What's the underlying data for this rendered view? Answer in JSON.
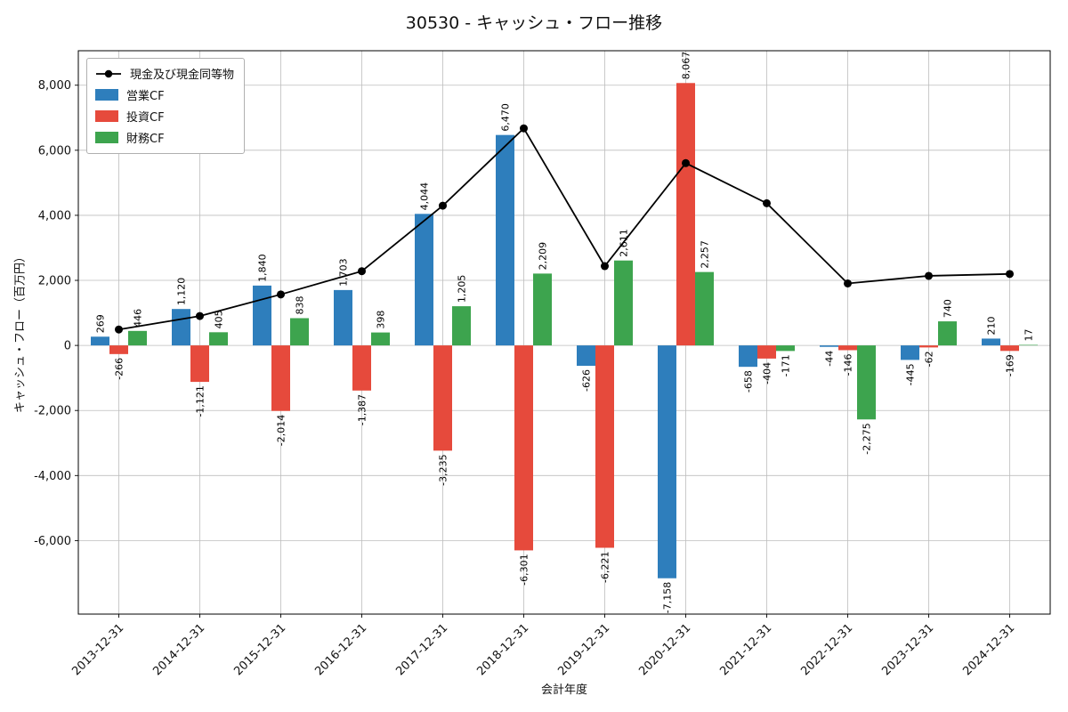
{
  "chart_data": {
    "type": "bar+line",
    "title": "30530 - キャッシュ・フロー推移",
    "xlabel": "会計年度",
    "ylabel": "キャッシュ・フロー（百万円）",
    "categories": [
      "2013-12-31",
      "2014-12-31",
      "2015-12-31",
      "2016-12-31",
      "2017-12-31",
      "2018-12-31",
      "2019-12-31",
      "2020-12-31",
      "2021-12-31",
      "2022-12-31",
      "2023-12-31",
      "2024-12-31"
    ],
    "series": [
      {
        "name": "営業CF",
        "type": "bar",
        "color": "#2e7ebc",
        "values": [
          269,
          1120,
          1840,
          1703,
          4044,
          6470,
          -626,
          -7158,
          -658,
          -44,
          -445,
          210
        ]
      },
      {
        "name": "投資CF",
        "type": "bar",
        "color": "#e64a3c",
        "values": [
          -266,
          -1121,
          -2014,
          -1387,
          -3235,
          -6301,
          -6221,
          8067,
          -404,
          -146,
          -62,
          -169
        ]
      },
      {
        "name": "財務CF",
        "type": "bar",
        "color": "#3da44e",
        "values": [
          446,
          405,
          838,
          398,
          1205,
          2209,
          2611,
          2257,
          -171,
          -2275,
          740,
          17
        ]
      },
      {
        "name": "現金及び現金同等物",
        "type": "line",
        "color": "#000000",
        "marker": "circle",
        "values": [
          490,
          904,
          1568,
          2282,
          4296,
          6674,
          2438,
          5604,
          4371,
          1906,
          2139,
          2197
        ]
      }
    ],
    "yticks": [
      -6000,
      -4000,
      -2000,
      0,
      2000,
      4000,
      6000,
      8000
    ],
    "ylim": [
      -8260,
      9060
    ],
    "grid": true,
    "legend_position": "upper left",
    "value_labels_rotation": 90
  }
}
